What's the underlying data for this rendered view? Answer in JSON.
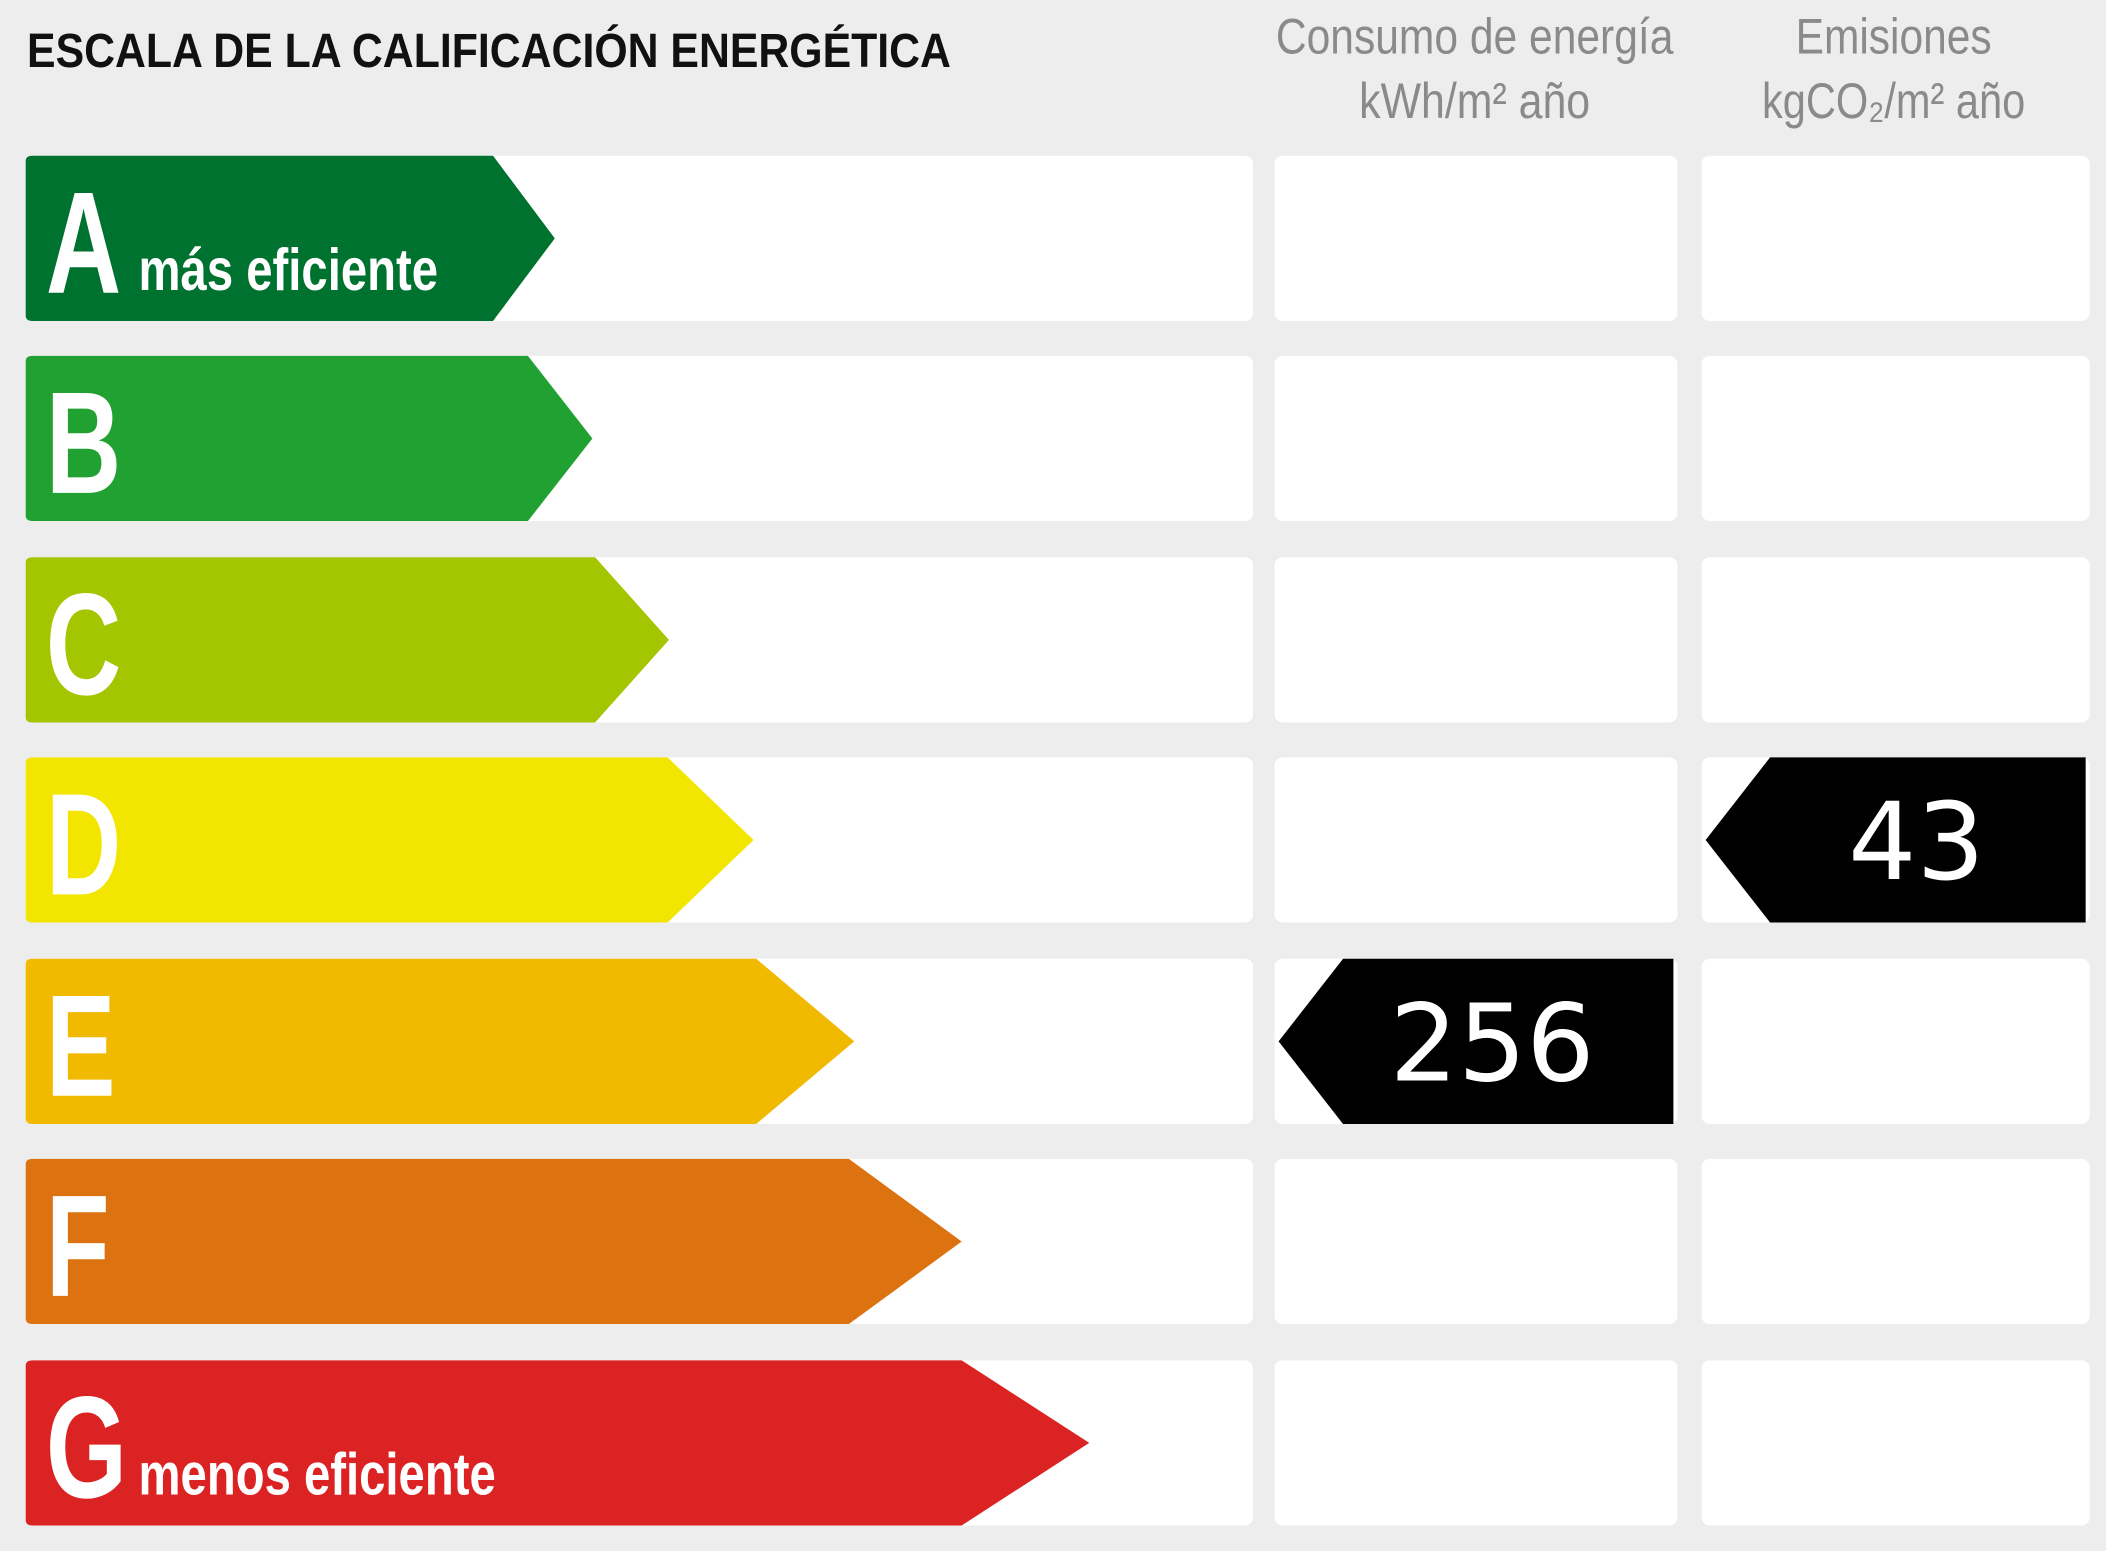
{
  "title": "ESCALA DE LA CALIFICACIÓN ENERGÉTICA",
  "columns": [
    {
      "title": "Consumo de energía",
      "unit": "kWh/m² año"
    },
    {
      "title": "Emisiones",
      "unit": "kgCO₂/m² año"
    }
  ],
  "rows": [
    {
      "letter": "A",
      "label": "más eficiente",
      "color": "#00722f"
    },
    {
      "letter": "B",
      "color": "#20a132"
    },
    {
      "letter": "C",
      "color": "#a4c600"
    },
    {
      "letter": "D",
      "color": "#f2e600",
      "emissions": 43
    },
    {
      "letter": "E",
      "color": "#f1b900",
      "consumption": 256
    },
    {
      "letter": "F",
      "color": "#dd7210"
    },
    {
      "letter": "G",
      "label": "menos eficiente",
      "color": "#dc2323"
    }
  ]
}
